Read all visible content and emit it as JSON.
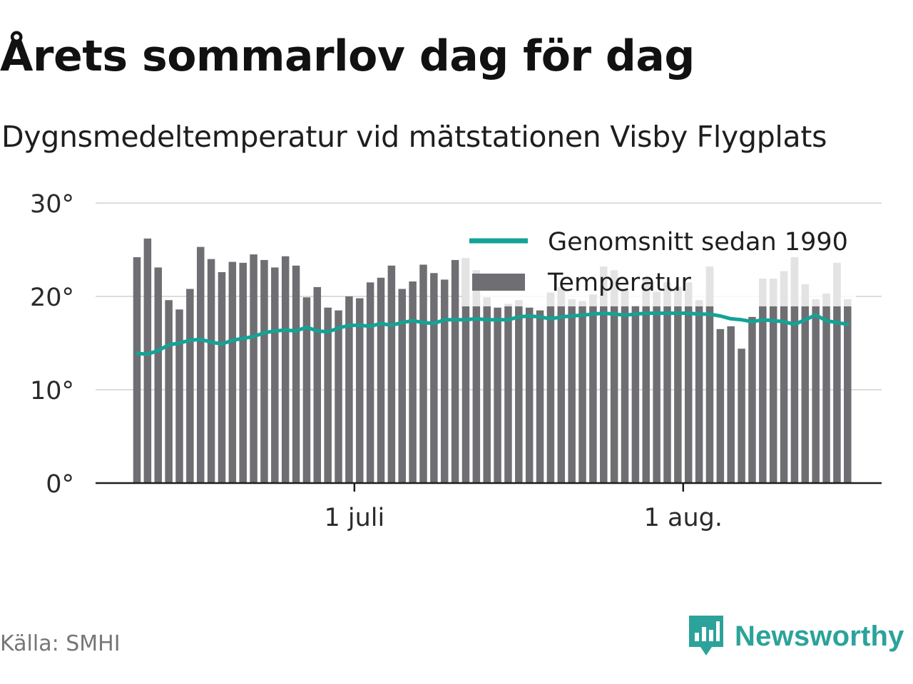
{
  "header": {
    "title": "Årets sommarlov dag för dag",
    "subtitle": "Dygnsmedeltemperatur vid mätstationen Visby Flygplats"
  },
  "footer": {
    "source": "Källa: SMHI",
    "brand": "Newsworthy",
    "brand_icon": "bar-chart-speech-bubble-icon"
  },
  "colors": {
    "bars": "#6f6e72",
    "bars_muted": "#e3e3e4",
    "line": "#13a396",
    "axis": "#1e1e1e",
    "grid": "#dcdcdc",
    "brand": "#2ba39a"
  },
  "chart_data": {
    "type": "bar",
    "x_start_date": "2018-06-10",
    "yticks": [
      0,
      10,
      20,
      30
    ],
    "ytick_labels": [
      "0°",
      "10°",
      "20°",
      "30°"
    ],
    "ylim": [
      0,
      30
    ],
    "xticks": [
      {
        "date": "2018-07-01",
        "label": "1 juli"
      },
      {
        "date": "2018-08-01",
        "label": "1 aug."
      }
    ],
    "grid": true,
    "legend_position": "top-right",
    "legend": [
      {
        "label": "Genomsnitt sedan 1990",
        "kind": "line"
      },
      {
        "label": "Temperatur",
        "kind": "bar"
      }
    ],
    "series": [
      {
        "name": "Temperatur",
        "kind": "bar",
        "values": [
          24.2,
          26.2,
          23.1,
          19.6,
          18.6,
          20.8,
          25.3,
          24.0,
          22.6,
          23.7,
          23.6,
          24.5,
          23.9,
          23.1,
          24.3,
          23.3,
          19.9,
          21.0,
          18.8,
          18.5,
          20.0,
          19.8,
          21.5,
          22.0,
          23.3,
          20.8,
          21.6,
          23.4,
          22.5,
          21.8,
          23.9,
          24.1,
          22.8,
          19.9,
          18.8,
          19.2,
          19.6,
          18.8,
          18.5,
          20.4,
          21.0,
          19.7,
          19.5,
          20.2,
          23.2,
          22.8,
          20.8,
          19.0,
          22.0,
          20.5,
          21.5,
          21.0,
          21.5,
          19.6,
          23.2,
          16.5,
          16.8,
          14.4,
          17.8,
          21.9,
          21.9,
          22.7,
          24.2,
          21.3,
          19.7,
          20.3,
          23.6,
          19.7
        ]
      },
      {
        "name": "Genomsnitt sedan 1990",
        "kind": "line",
        "values": [
          13.9,
          13.8,
          14.2,
          14.8,
          15.0,
          15.3,
          15.4,
          15.1,
          14.9,
          15.3,
          15.5,
          15.7,
          16.1,
          16.3,
          16.4,
          16.3,
          16.7,
          16.3,
          16.2,
          16.6,
          16.9,
          16.9,
          16.8,
          17.1,
          16.9,
          17.2,
          17.4,
          17.2,
          17.1,
          17.5,
          17.5,
          17.5,
          17.6,
          17.5,
          17.5,
          17.5,
          17.8,
          17.9,
          17.8,
          17.6,
          17.8,
          17.9,
          18.0,
          18.1,
          18.2,
          18.1,
          18.0,
          18.1,
          18.2,
          18.2,
          18.2,
          18.2,
          18.2,
          18.1,
          18.1,
          17.9,
          17.6,
          17.5,
          17.3,
          17.5,
          17.4,
          17.3,
          17.0,
          17.5,
          18.0,
          17.4,
          17.2,
          17.0
        ]
      }
    ]
  }
}
